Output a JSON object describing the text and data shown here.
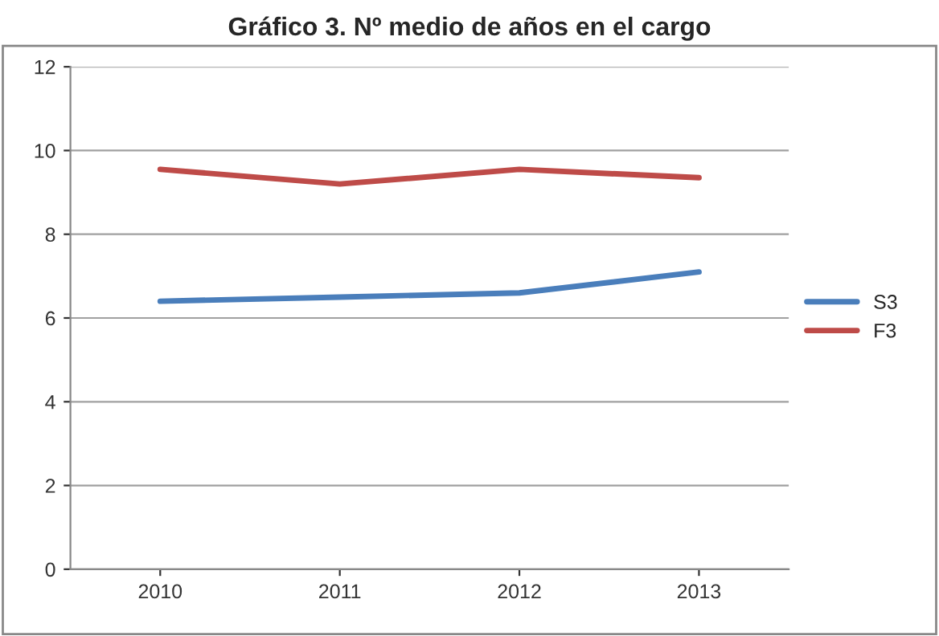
{
  "chart_data": {
    "type": "line",
    "title": "Gráfico 3. Nº medio de años en el cargo",
    "categories": [
      "2010",
      "2011",
      "2012",
      "2013"
    ],
    "series": [
      {
        "name": "S3",
        "color": "#4a7ebb",
        "values": [
          6.4,
          6.5,
          6.6,
          7.1
        ]
      },
      {
        "name": "F3",
        "color": "#be4b48",
        "values": [
          9.55,
          9.2,
          9.55,
          9.35
        ]
      }
    ],
    "ylim": [
      0,
      12
    ],
    "yticks": [
      0,
      2,
      4,
      6,
      8,
      10,
      12
    ],
    "grid": "y",
    "legend": "right",
    "marker": "none",
    "line_style": "solid"
  }
}
